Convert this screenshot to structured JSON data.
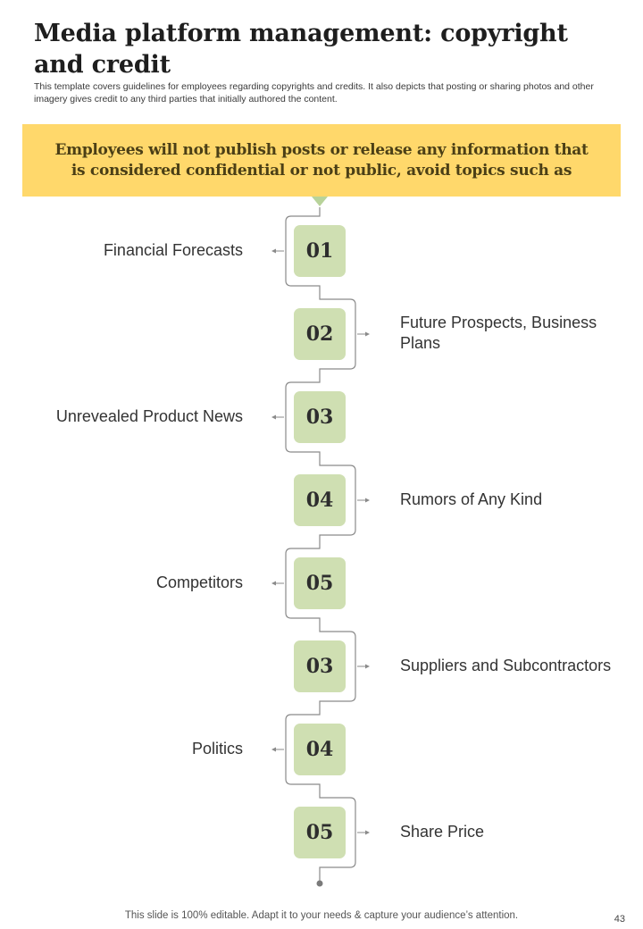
{
  "header": {
    "title": "Media platform management: copyright and credit",
    "subtitle": "This template covers guidelines for employees regarding copyrights and credits. It also depicts that posting or sharing photos and other imagery gives credit to any third parties that initially authored the content."
  },
  "banner": {
    "text": "Employees will not publish posts or release any information that is considered confidential or not public, avoid topics such as"
  },
  "colors": {
    "banner": "#ffd86b",
    "step_box": "#cfdfb2",
    "pointer": "#b8d39a",
    "connector": "#8a8a8a"
  },
  "steps": [
    {
      "number": "01",
      "label": "Financial Forecasts",
      "side": "left"
    },
    {
      "number": "02",
      "label": "Future Prospects, Business Plans",
      "side": "right"
    },
    {
      "number": "03",
      "label": "Unrevealed Product News",
      "side": "left"
    },
    {
      "number": "04",
      "label": "Rumors of Any Kind",
      "side": "right"
    },
    {
      "number": "05",
      "label": "Competitors",
      "side": "left"
    },
    {
      "number": "03",
      "label": "Suppliers and Subcontractors",
      "side": "right"
    },
    {
      "number": "04",
      "label": "Politics",
      "side": "left"
    },
    {
      "number": "05",
      "label": "Share Price",
      "side": "right"
    }
  ],
  "footer": {
    "note": "This slide is 100% editable. Adapt it to your needs & capture your audience’s attention.",
    "page_number": "43"
  }
}
